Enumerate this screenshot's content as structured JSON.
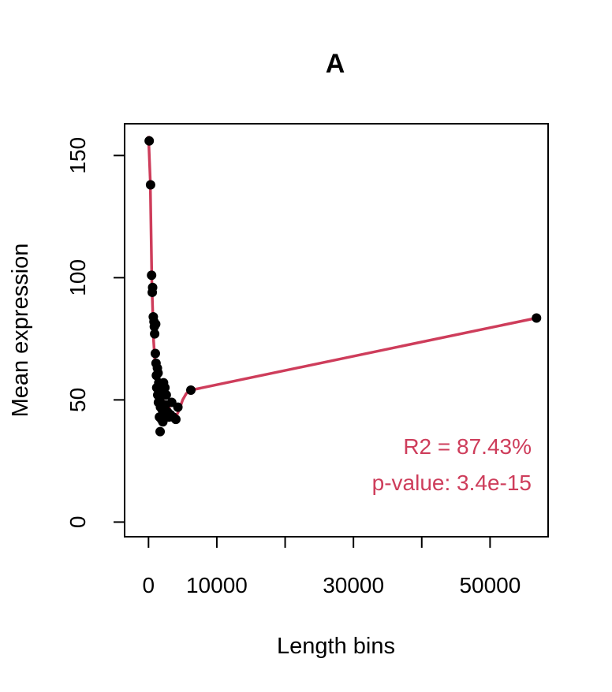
{
  "chart_data": {
    "type": "scatter",
    "title": "A",
    "xlabel": "Length bins",
    "ylabel": "Mean expression",
    "xlim": [
      -3500,
      58500
    ],
    "ylim": [
      -6,
      163
    ],
    "x_ticks": [
      0,
      10000,
      20000,
      30000,
      40000,
      50000
    ],
    "x_tick_labels": [
      "0",
      "10000",
      "",
      "30000",
      "",
      "50000"
    ],
    "y_ticks": [
      0,
      50,
      100,
      150
    ],
    "y_tick_labels": [
      "0",
      "50",
      "100",
      "150"
    ],
    "grid": false,
    "colors": {
      "points": "#000000",
      "fit": "#CE3D5B",
      "annotation": "#CE3D5B"
    },
    "series": [
      {
        "kind": "points",
        "x": [
          100,
          300,
          450,
          550,
          600,
          700,
          800,
          850,
          900,
          1000,
          1050,
          1100,
          1150,
          1200,
          1300,
          1350,
          1400,
          1450,
          1500,
          1600,
          1650,
          1700,
          1750,
          1800,
          1900,
          2000,
          2100,
          2200,
          2300,
          2400,
          2500,
          2600,
          2800,
          3000,
          3200,
          3400,
          3600,
          4000,
          4300,
          6200,
          56800
        ],
        "y": [
          156,
          138,
          101,
          94,
          96,
          84,
          82,
          80,
          77,
          69,
          81,
          65,
          60,
          55,
          63,
          52,
          61,
          49,
          57,
          43,
          50,
          37,
          47,
          54,
          42,
          46,
          41,
          57,
          44,
          55,
          48,
          52,
          45,
          43,
          44,
          49,
          43,
          42,
          47,
          54,
          83.5
        ]
      },
      {
        "kind": "fit",
        "x": [
          0,
          250,
          500,
          750,
          1000,
          1250,
          1500,
          1750,
          2000,
          2250,
          2500,
          2750,
          3000,
          3250,
          3500,
          3750,
          4000,
          4500,
          5000,
          5500,
          6000,
          6200,
          56800
        ],
        "y": [
          158,
          140,
          97,
          74,
          63,
          56,
          52,
          51,
          50,
          49.5,
          49,
          48,
          47,
          45,
          43.5,
          43,
          43,
          46,
          50,
          52.5,
          54,
          54,
          83.5
        ]
      }
    ],
    "annotations": [
      "R2 = 87.43%",
      "p-value: 3.4e-15"
    ],
    "annotation_placement": "bottom-right"
  }
}
